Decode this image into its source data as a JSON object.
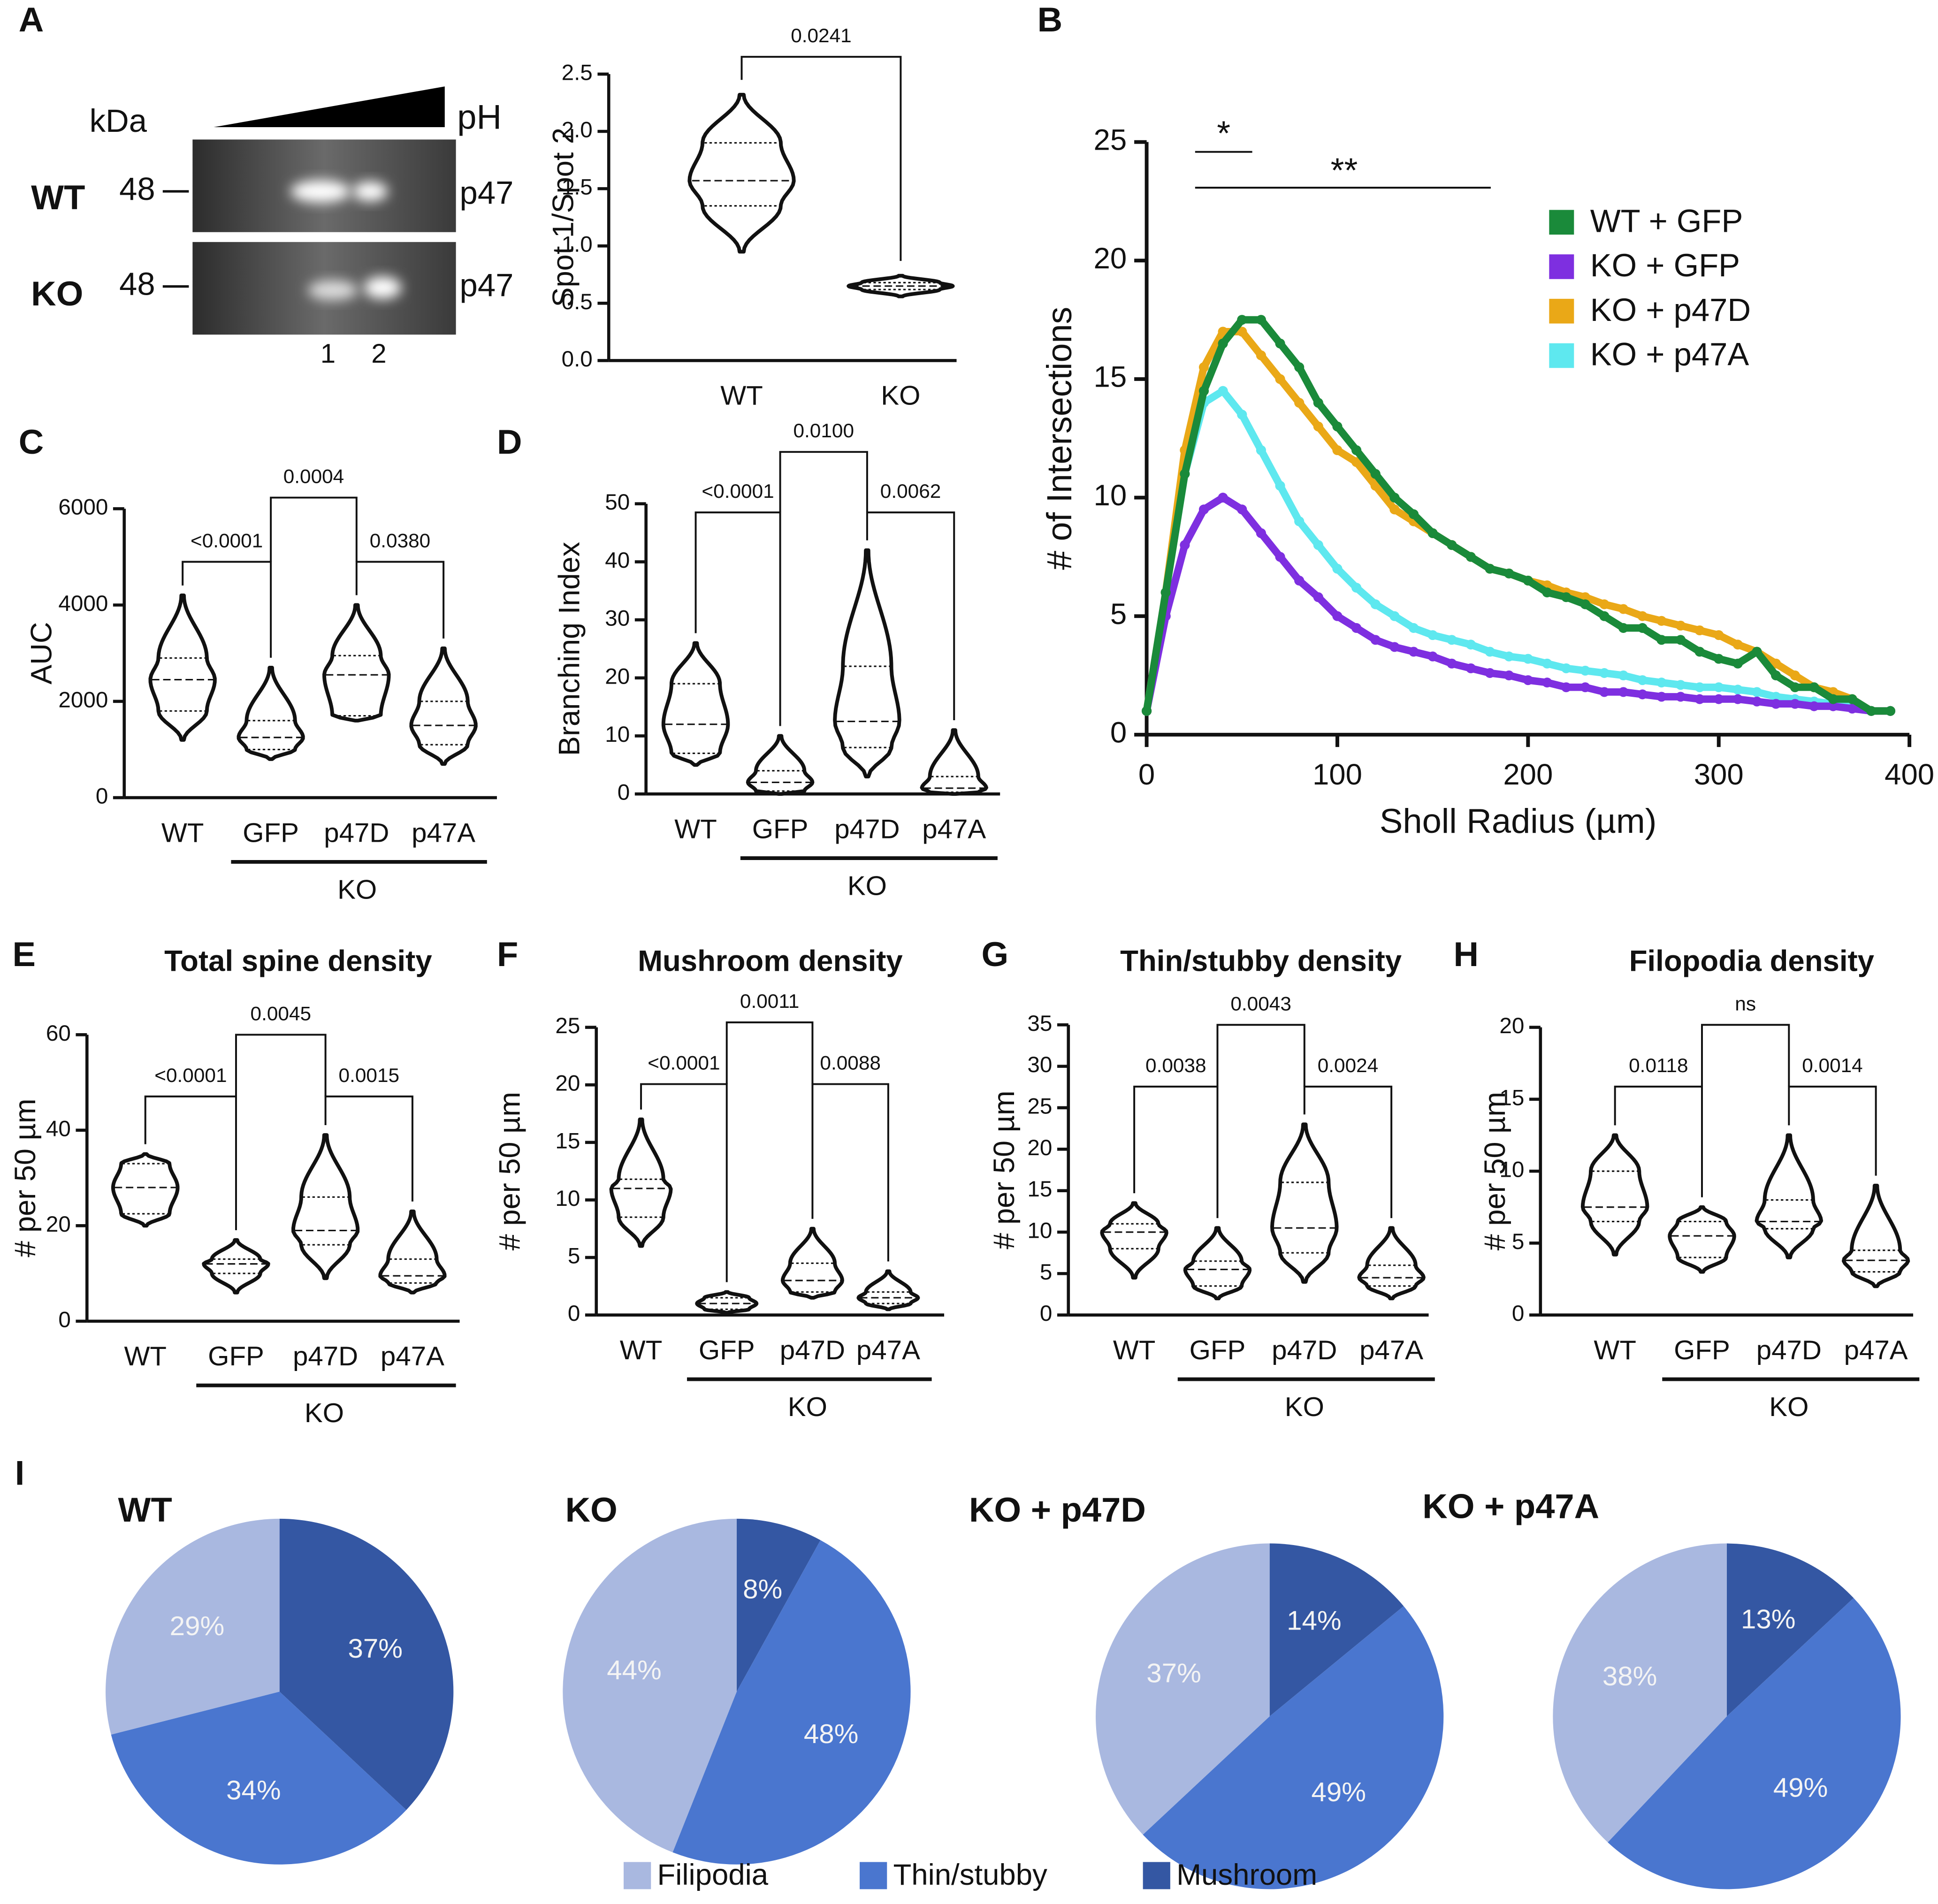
{
  "blot": {
    "panel": "A",
    "unit": "kDa",
    "axis": "pH",
    "rows": [
      {
        "name": "WT",
        "marker": "48",
        "band": "p47"
      },
      {
        "name": "KO",
        "marker": "48",
        "band": "p47"
      }
    ],
    "spots": [
      "1",
      "2"
    ]
  },
  "chart_data": [
    {
      "type": "violin",
      "ylabel": "Spot 1/Spot 2",
      "categories": [
        "WT",
        "KO"
      ],
      "stats": [
        [
          0.95,
          1.35,
          1.57,
          1.9,
          2.32
        ],
        [
          0.56,
          0.62,
          0.65,
          0.68,
          0.74
        ]
      ],
      "ylim": [
        0,
        2.5
      ],
      "yticks": [
        {
          "value": 0,
          "label": "0.0"
        },
        {
          "value": 0.5,
          "label": "0.5"
        },
        {
          "value": 1,
          "label": "1.0"
        },
        {
          "value": 1.5,
          "label": "1.5"
        },
        {
          "value": 2,
          "label": "2.0"
        },
        {
          "value": 2.5,
          "label": "2.5"
        }
      ],
      "comparisons": [
        "0.0241"
      ]
    },
    {
      "type": "line",
      "panel": "B",
      "xlabel": "Sholl Radius (µm)",
      "ylabel": "# of Intersections",
      "annotations": [
        "*",
        "**"
      ],
      "x": [
        0,
        10,
        20,
        30,
        40,
        50,
        60,
        70,
        80,
        90,
        100,
        110,
        120,
        130,
        140,
        150,
        160,
        170,
        180,
        190,
        200,
        210,
        220,
        230,
        240,
        250,
        260,
        270,
        280,
        290,
        300,
        310,
        320,
        330,
        340,
        350,
        360,
        370,
        380,
        390
      ],
      "series": [
        {
          "name": "WT + GFP",
          "color": "#1a8a3a",
          "values": [
            1,
            6,
            11,
            14.5,
            16.5,
            17.5,
            17.5,
            16.5,
            15.5,
            14,
            13,
            12,
            11,
            10,
            9.3,
            8.5,
            8,
            7.5,
            7,
            6.8,
            6.5,
            6,
            5.8,
            5.5,
            5,
            4.5,
            4.5,
            4,
            4,
            3.5,
            3.2,
            3,
            3.5,
            2.5,
            2,
            2,
            1.5,
            1.5,
            1,
            1
          ]
        },
        {
          "name": "KO + GFP",
          "color": "#7e2fe0",
          "values": [
            1,
            5,
            8,
            9.5,
            10,
            9.5,
            8.5,
            7.5,
            6.5,
            5.8,
            5,
            4.5,
            4,
            3.7,
            3.5,
            3.3,
            3,
            2.8,
            2.6,
            2.5,
            2.3,
            2.2,
            2,
            2,
            1.8,
            1.8,
            1.7,
            1.6,
            1.6,
            1.5,
            1.5,
            1.5,
            1.4,
            1.3,
            1.3,
            1.2,
            1.2,
            1.1,
            1,
            1
          ]
        },
        {
          "name": "KO + p47D",
          "color": "#eaa817",
          "values": [
            1,
            6,
            12,
            15.5,
            17,
            17,
            16,
            15,
            14,
            13,
            12,
            11.5,
            10.5,
            9.5,
            9,
            8.5,
            8,
            7.5,
            7,
            6.8,
            6.5,
            6.3,
            6,
            5.8,
            5.5,
            5.3,
            5,
            4.8,
            4.6,
            4.4,
            4.2,
            3.8,
            3.5,
            3,
            2.5,
            2,
            1.8,
            1.5,
            1,
            1
          ]
        },
        {
          "name": "KO + p47A",
          "color": "#5ee8ef",
          "values": [
            1,
            6,
            11,
            14,
            14.5,
            13.5,
            12,
            10.5,
            9,
            8,
            7,
            6.2,
            5.5,
            5,
            4.5,
            4.2,
            4,
            3.8,
            3.5,
            3.3,
            3.2,
            3,
            2.8,
            2.7,
            2.6,
            2.5,
            2.3,
            2.2,
            2.1,
            2,
            2,
            1.9,
            1.8,
            1.6,
            1.5,
            1.4,
            1.3,
            1.2,
            1,
            1
          ]
        }
      ],
      "xlim": [
        0,
        400
      ],
      "xticks": [
        0,
        100,
        200,
        300,
        400
      ],
      "ylim": [
        0,
        25
      ],
      "yticks": [
        0,
        5,
        10,
        15,
        20,
        25
      ]
    },
    {
      "type": "violin",
      "panel": "C",
      "ylabel": "AUC",
      "categories": [
        "WT",
        "GFP",
        "p47D",
        "p47A"
      ],
      "group_label": "KO",
      "stats": [
        [
          1200,
          1800,
          2450,
          2900,
          4200
        ],
        [
          800,
          1000,
          1250,
          1600,
          2700
        ],
        [
          1600,
          1700,
          2550,
          2950,
          4000
        ],
        [
          700,
          1100,
          1500,
          2000,
          3100
        ]
      ],
      "ylim": [
        0,
        6000
      ],
      "yticks": [
        0,
        2000,
        4000,
        6000
      ],
      "comparisons": [
        "<0.0001",
        "0.0004",
        "0.0380"
      ]
    },
    {
      "type": "violin",
      "panel": "D",
      "ylabel": "Branching Index",
      "categories": [
        "WT",
        "GFP",
        "p47D",
        "p47A"
      ],
      "group_label": "KO",
      "stats": [
        [
          5,
          7,
          12,
          19,
          26
        ],
        [
          0,
          0.5,
          2,
          4,
          10
        ],
        [
          3,
          8,
          12.5,
          22,
          42
        ],
        [
          0,
          0.3,
          1,
          3,
          11
        ]
      ],
      "ylim": [
        0,
        50
      ],
      "yticks": [
        0,
        10,
        20,
        30,
        40,
        50
      ],
      "comparisons": [
        "<0.0001",
        "0.0100",
        "0.0062"
      ]
    },
    {
      "type": "violin",
      "panel": "E",
      "title": "Total spine density",
      "ylabel": "# per 50 µm",
      "categories": [
        "WT",
        "GFP",
        "p47D",
        "p47A"
      ],
      "group_label": "KO",
      "stats": [
        [
          20,
          22.5,
          28,
          33,
          35
        ],
        [
          6,
          10,
          12,
          13,
          17
        ],
        [
          9,
          16,
          19,
          26,
          39
        ],
        [
          6,
          8,
          9.5,
          13,
          23
        ]
      ],
      "ylim": [
        0,
        60
      ],
      "yticks": [
        0,
        20,
        40,
        60
      ],
      "comparisons": [
        "<0.0001",
        "0.0045",
        "0.0015"
      ]
    },
    {
      "type": "violin",
      "panel": "F",
      "title": "Mushroom density",
      "ylabel": "# per 50 µm",
      "categories": [
        "WT",
        "GFP",
        "p47D",
        "p47A"
      ],
      "group_label": "KO",
      "stats": [
        [
          6,
          8.5,
          11,
          11.8,
          17
        ],
        [
          0.2,
          0.5,
          1,
          1.5,
          2
        ],
        [
          1.5,
          2,
          3,
          4.5,
          7.5
        ],
        [
          0.5,
          1,
          1.5,
          2,
          3.8
        ]
      ],
      "ylim": [
        0,
        25
      ],
      "yticks": [
        0,
        5,
        10,
        15,
        20,
        25
      ],
      "comparisons": [
        "<0.0001",
        "0.0011",
        "0.0088"
      ]
    },
    {
      "type": "violin",
      "panel": "G",
      "title": "Thin/stubby density",
      "ylabel": "# per 50 µm",
      "categories": [
        "WT",
        "GFP",
        "p47D",
        "p47A"
      ],
      "group_label": "KO",
      "stats": [
        [
          4.5,
          8,
          10,
          11,
          13.5
        ],
        [
          2,
          3.5,
          5.5,
          6.5,
          10.5
        ],
        [
          4,
          7.5,
          10.5,
          16,
          23
        ],
        [
          2,
          3.5,
          4.5,
          6,
          10.5
        ]
      ],
      "ylim": [
        0,
        35
      ],
      "yticks": [
        0,
        5,
        10,
        15,
        20,
        25,
        30,
        35
      ],
      "comparisons": [
        "0.0038",
        "0.0043",
        "0.0024"
      ]
    },
    {
      "type": "violin",
      "panel": "H",
      "title": "Filopodia density",
      "ylabel": "# per 50 µm",
      "categories": [
        "WT",
        "GFP",
        "p47D",
        "p47A"
      ],
      "group_label": "KO",
      "stats": [
        [
          4.2,
          6.5,
          7.5,
          10,
          12.5
        ],
        [
          3,
          4,
          5.5,
          6.5,
          7.5
        ],
        [
          4,
          6,
          6.5,
          8,
          12.5
        ],
        [
          2,
          3,
          3.8,
          4.5,
          9
        ]
      ],
      "ylim": [
        0,
        20
      ],
      "yticks": [
        0,
        5,
        10,
        15,
        20
      ],
      "comparisons": [
        "0.0118",
        "ns",
        "0.0014"
      ]
    },
    {
      "type": "pie",
      "panel": "I",
      "title": "WT",
      "categories": [
        "Filipodia",
        "Thin/stubby",
        "Mushroom"
      ],
      "colors": [
        "#a9b8e0",
        "#4a76cf",
        "#3457a3"
      ],
      "values": [
        29,
        34,
        37
      ],
      "value_labels": [
        "29%",
        "34%",
        "37%"
      ]
    },
    {
      "type": "pie",
      "title": "KO",
      "categories": [
        "Filipodia",
        "Thin/stubby",
        "Mushroom"
      ],
      "colors": [
        "#a9b8e0",
        "#4a76cf",
        "#3457a3"
      ],
      "values": [
        44,
        48,
        8
      ],
      "value_labels": [
        "44%",
        "48%",
        "8%"
      ]
    },
    {
      "type": "pie",
      "title": "KO + p47D",
      "categories": [
        "Filipodia",
        "Thin/stubby",
        "Mushroom"
      ],
      "colors": [
        "#a9b8e0",
        "#4a76cf",
        "#3457a3"
      ],
      "values": [
        37,
        49,
        14
      ],
      "value_labels": [
        "37%",
        "49%",
        "14%"
      ]
    },
    {
      "type": "pie",
      "title": "KO + p47A",
      "categories": [
        "Filipodia",
        "Thin/stubby",
        "Mushroom"
      ],
      "colors": [
        "#a9b8e0",
        "#4a76cf",
        "#3457a3"
      ],
      "values": [
        38,
        49,
        13
      ],
      "value_labels": [
        "38%",
        "49%",
        "13%"
      ]
    }
  ]
}
